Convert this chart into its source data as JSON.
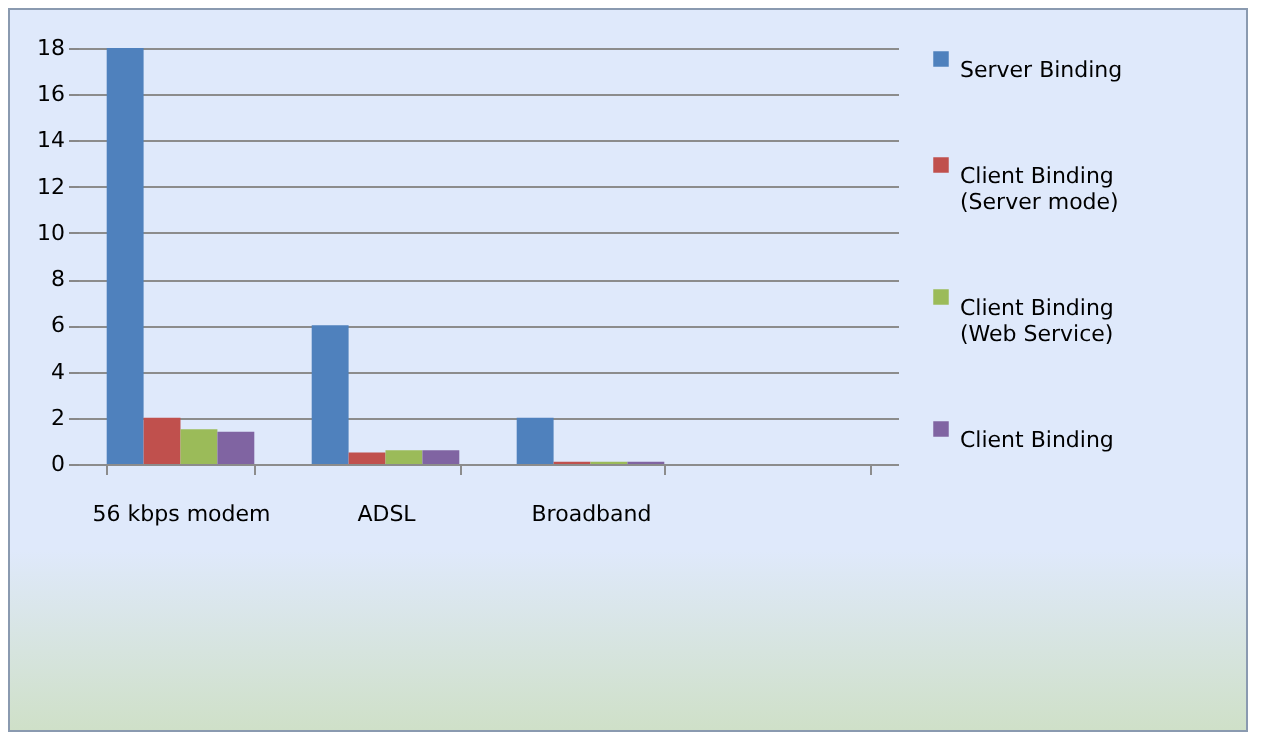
{
  "chart_data": {
    "type": "bar",
    "categories": [
      "56 kbps modem",
      "ADSL",
      "Broadband",
      null
    ],
    "series": [
      {
        "name": "Server Binding",
        "color": "#4f81bd",
        "values": [
          18,
          6,
          2,
          null
        ]
      },
      {
        "name": "Client Binding (Server mode)",
        "color": "#c0504d",
        "values": [
          2,
          0.5,
          0.1,
          null
        ]
      },
      {
        "name": "Client Binding (Web Service)",
        "color": "#9bbb59",
        "values": [
          1.5,
          0.6,
          0.1,
          null
        ]
      },
      {
        "name": "Client Binding",
        "color": "#8064a2",
        "values": [
          1.4,
          0.6,
          0.1,
          null
        ]
      }
    ],
    "ylim": [
      0,
      18
    ],
    "yticks": [
      0,
      2,
      4,
      6,
      8,
      10,
      12,
      14,
      16,
      18
    ],
    "grid": "y",
    "legend": "right"
  }
}
